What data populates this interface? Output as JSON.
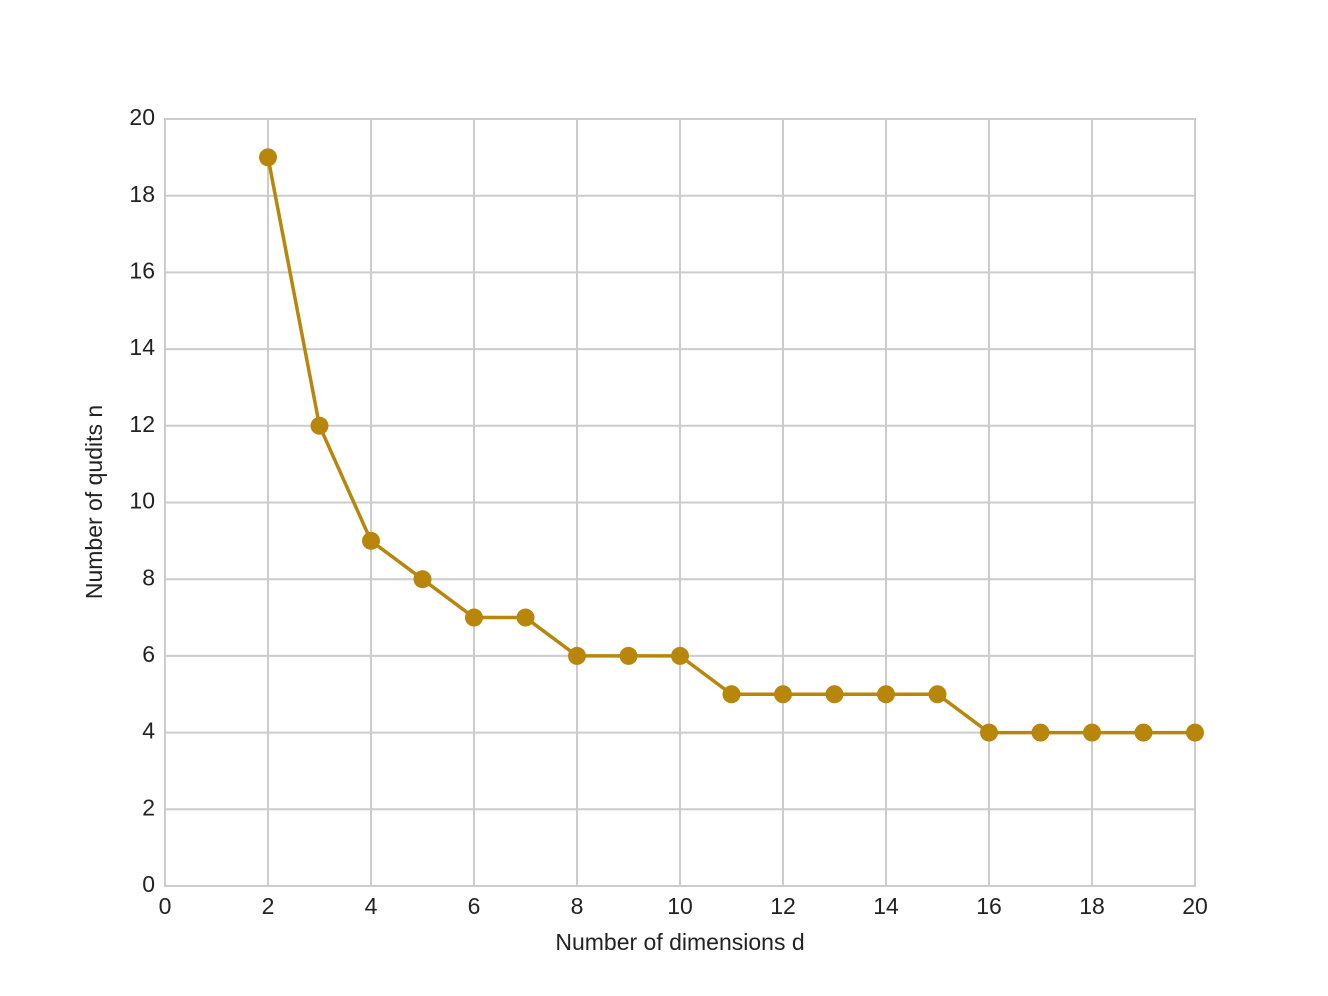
{
  "chart_data": {
    "type": "line",
    "xlabel": "Number of dimensions d",
    "ylabel": "Number of qudits n",
    "x": [
      2,
      3,
      4,
      5,
      6,
      7,
      8,
      9,
      10,
      11,
      12,
      13,
      14,
      15,
      16,
      17,
      18,
      19,
      20
    ],
    "series": [
      {
        "color": "#b8860b",
        "values": [
          19,
          12,
          9,
          8,
          7,
          7,
          6,
          6,
          6,
          5,
          5,
          5,
          5,
          5,
          4,
          4,
          4,
          4,
          4
        ]
      }
    ],
    "xlim": [
      0,
      20
    ],
    "ylim": [
      0,
      20
    ],
    "xticks": [
      0,
      2,
      4,
      6,
      8,
      10,
      12,
      14,
      16,
      18,
      20
    ],
    "yticks": [
      0,
      2,
      4,
      6,
      8,
      10,
      12,
      14,
      16,
      18,
      20
    ],
    "grid": true
  }
}
